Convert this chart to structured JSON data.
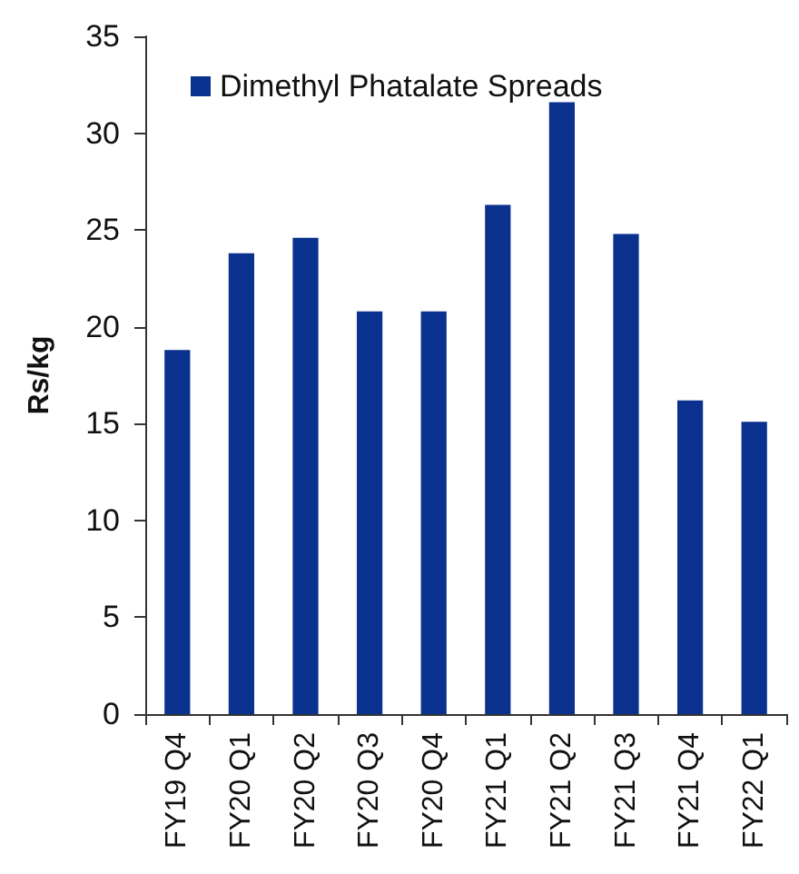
{
  "chart_data": {
    "type": "bar",
    "ylabel": "Rs/kg",
    "categories": [
      "FY19 Q4",
      "FY20 Q1",
      "FY20 Q2",
      "FY20 Q3",
      "FY20 Q4",
      "FY21 Q1",
      "FY21 Q2",
      "FY21 Q3",
      "FY21 Q4",
      "FY22 Q1"
    ],
    "series": [
      {
        "name": "Dimethyl Phatalate Spreads",
        "color": "#0b318f",
        "values": [
          18.8,
          23.8,
          24.6,
          20.8,
          20.8,
          26.3,
          31.6,
          24.8,
          16.2,
          15.1
        ]
      }
    ],
    "ylim": [
      0,
      35
    ],
    "yticks": [
      0,
      5,
      10,
      15,
      20,
      25,
      30,
      35
    ],
    "grid": false,
    "legend": "top left"
  }
}
